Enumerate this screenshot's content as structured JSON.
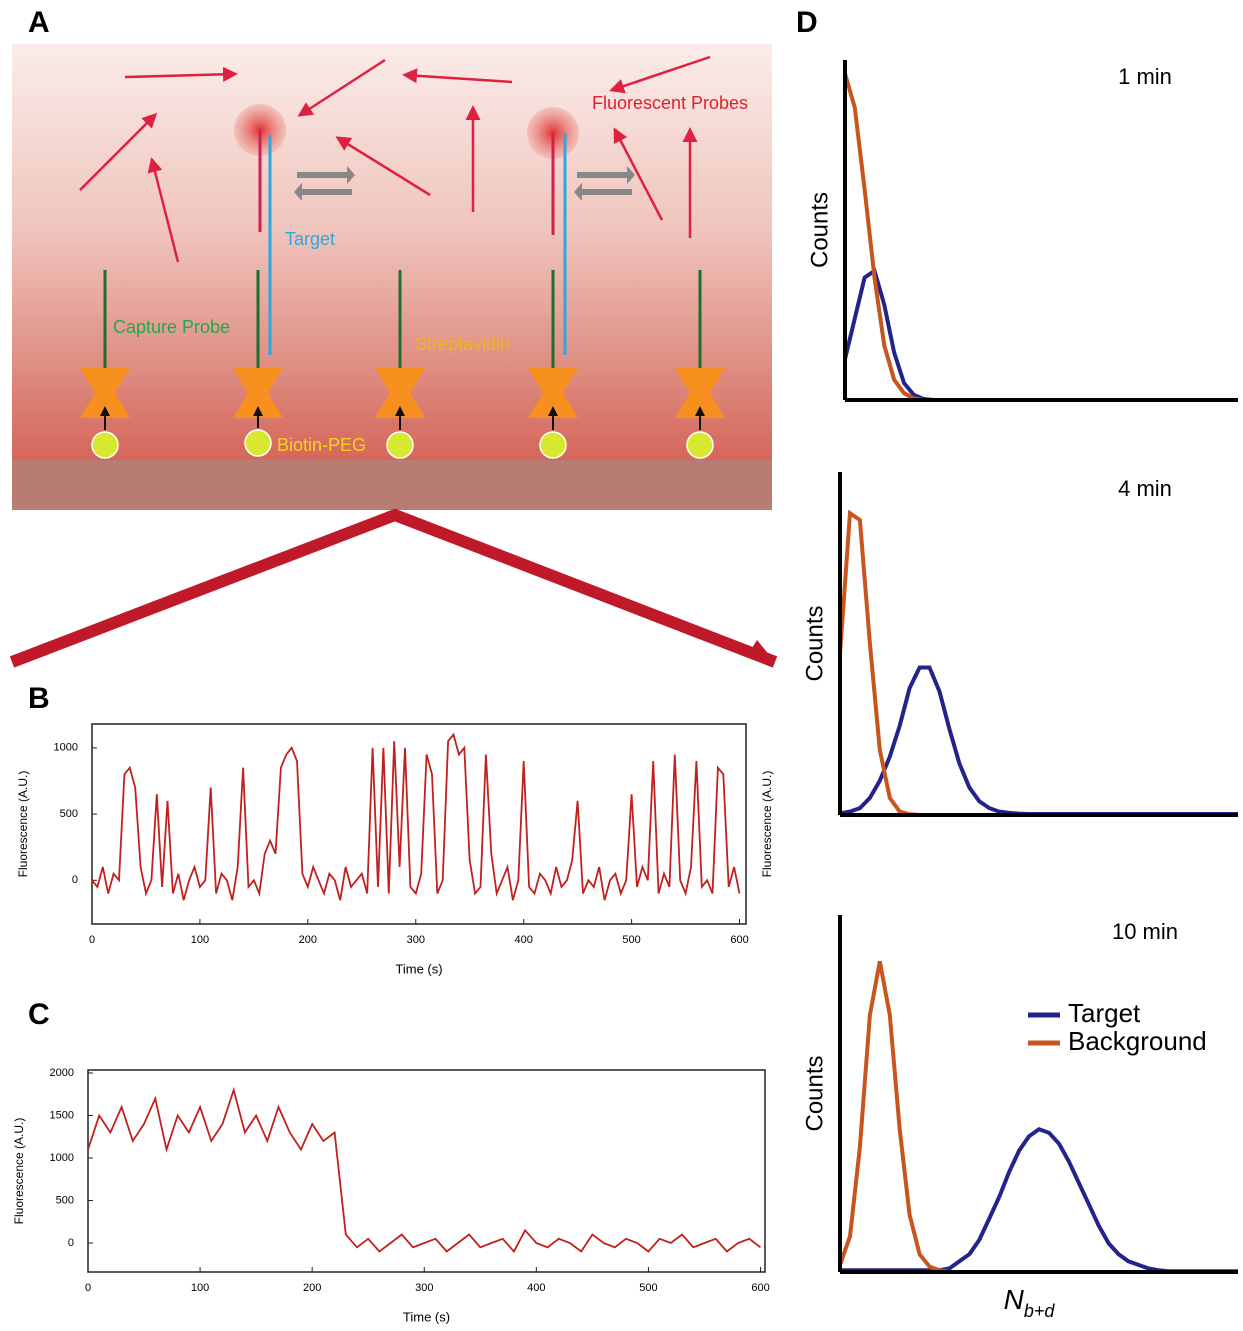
{
  "panel_labels": [
    "A",
    "B",
    "C",
    "D"
  ],
  "diagram": {
    "fluorescent_probes": "Fluorescent Probes",
    "target": "Target",
    "capture_probe": "Capture Probe",
    "streptavidin": "Streptavidin",
    "biotin_peg": "Biotin-PEG"
  },
  "chart_data": [
    {
      "type": "line",
      "ylabel": "Fluorescence (A.U.)",
      "xlabel": "Time (s)",
      "xlim": [
        0,
        606
      ],
      "ylim": [
        -330,
        1180
      ],
      "xticks": [
        0,
        100,
        200,
        300,
        400,
        500,
        600
      ],
      "yticks": [
        0,
        500,
        1000
      ],
      "x": [
        0,
        5,
        10,
        15,
        20,
        25,
        30,
        35,
        40,
        45,
        50,
        55,
        60,
        65,
        70,
        75,
        80,
        85,
        90,
        95,
        100,
        105,
        110,
        115,
        120,
        125,
        130,
        135,
        140,
        145,
        150,
        155,
        160,
        165,
        170,
        175,
        180,
        185,
        190,
        195,
        200,
        205,
        210,
        215,
        220,
        225,
        230,
        235,
        240,
        245,
        250,
        255,
        260,
        265,
        270,
        275,
        280,
        285,
        290,
        295,
        300,
        305,
        310,
        315,
        320,
        325,
        330,
        335,
        340,
        345,
        350,
        355,
        360,
        365,
        370,
        375,
        380,
        385,
        390,
        395,
        400,
        405,
        410,
        415,
        420,
        425,
        430,
        435,
        440,
        445,
        450,
        455,
        460,
        465,
        470,
        475,
        480,
        485,
        490,
        495,
        500,
        505,
        510,
        515,
        520,
        525,
        530,
        535,
        540,
        545,
        550,
        555,
        560,
        565,
        570,
        575,
        580,
        585,
        590,
        595,
        600
      ],
      "series": [
        {
          "color": "#c0201e",
          "values": [
            0,
            -50,
            100,
            -100,
            50,
            0,
            800,
            850,
            700,
            100,
            -100,
            0,
            650,
            -50,
            600,
            -100,
            50,
            -150,
            0,
            100,
            -50,
            0,
            700,
            -100,
            50,
            0,
            -150,
            100,
            850,
            -50,
            0,
            -100,
            200,
            300,
            200,
            850,
            950,
            1000,
            900,
            50,
            -50,
            100,
            0,
            -100,
            50,
            0,
            -150,
            100,
            -50,
            0,
            50,
            -100,
            1000,
            -50,
            1000,
            -100,
            1050,
            100,
            1000,
            -50,
            -100,
            50,
            950,
            800,
            -100,
            0,
            1050,
            1100,
            950,
            1000,
            150,
            -100,
            -50,
            950,
            200,
            -100,
            0,
            100,
            -150,
            0,
            900,
            -50,
            -100,
            50,
            0,
            -100,
            100,
            -50,
            0,
            150,
            600,
            -100,
            0,
            -50,
            100,
            -150,
            0,
            50,
            -100,
            0,
            650,
            -50,
            100,
            0,
            900,
            -100,
            50,
            -50,
            950,
            0,
            -100,
            100,
            900,
            -50,
            0,
            -100,
            850,
            800,
            -50,
            100,
            -100
          ]
        }
      ]
    },
    {
      "type": "line",
      "ylabel": "Fluorescence (A.U.)",
      "xlabel": "Time (s)",
      "xlim": [
        0,
        604
      ],
      "ylim": [
        -341,
        2035
      ],
      "xticks": [
        0,
        100,
        200,
        300,
        400,
        500,
        600
      ],
      "yticks": [
        0,
        500,
        1000,
        1500,
        2000
      ],
      "x": [
        0,
        10,
        20,
        30,
        40,
        50,
        60,
        70,
        80,
        90,
        100,
        110,
        120,
        130,
        140,
        150,
        160,
        170,
        180,
        190,
        200,
        210,
        220,
        230,
        240,
        250,
        260,
        270,
        280,
        290,
        300,
        310,
        320,
        330,
        340,
        350,
        360,
        370,
        380,
        390,
        400,
        410,
        420,
        430,
        440,
        450,
        460,
        470,
        480,
        490,
        500,
        510,
        520,
        530,
        540,
        550,
        560,
        570,
        580,
        590,
        600
      ],
      "series": [
        {
          "color": "#c0201e",
          "values": [
            1100,
            1500,
            1300,
            1600,
            1200,
            1400,
            1700,
            1100,
            1500,
            1300,
            1600,
            1200,
            1400,
            1800,
            1300,
            1500,
            1200,
            1600,
            1300,
            1100,
            1400,
            1200,
            1300,
            100,
            -50,
            50,
            -100,
            0,
            100,
            -50,
            0,
            50,
            -100,
            0,
            100,
            -50,
            0,
            50,
            -100,
            150,
            0,
            -50,
            50,
            0,
            -100,
            100,
            0,
            -50,
            50,
            0,
            -100,
            50,
            0,
            100,
            -50,
            0,
            50,
            -100,
            0,
            50,
            -50
          ]
        }
      ]
    },
    {
      "type": "line",
      "title": "1 min",
      "ylabel": "Counts",
      "xlim": [
        0,
        100
      ],
      "ylim": [
        0,
        100
      ],
      "x": [
        0,
        2.5,
        5,
        7.5,
        10,
        12.5,
        15,
        17.5,
        20,
        22.5,
        25,
        27.5,
        30,
        32.5,
        35,
        37.5,
        40,
        42.5,
        45,
        47.5,
        50,
        52.5,
        55,
        57.5,
        60,
        62.5,
        65,
        67.5,
        70,
        72.5,
        75,
        77.5,
        80,
        82.5,
        85,
        87.5,
        90,
        92.5,
        95,
        97.5,
        100
      ],
      "series": [
        {
          "color": "#23238a",
          "values": [
            12,
            24,
            36,
            38,
            28,
            14,
            5,
            1.5,
            0.3,
            0,
            0,
            0,
            0,
            0,
            0,
            0,
            0,
            0,
            0,
            0,
            0,
            0,
            0,
            0,
            0,
            0,
            0,
            0,
            0,
            0,
            0,
            0,
            0,
            0,
            0,
            0,
            0,
            0,
            0,
            0,
            0
          ]
        },
        {
          "color": "#c8541e",
          "values": [
            96,
            86,
            62,
            36,
            16,
            6,
            2,
            0.5,
            0,
            0,
            0,
            0,
            0,
            0,
            0,
            0,
            0,
            0,
            0,
            0,
            0,
            0,
            0,
            0,
            0,
            0,
            0,
            0,
            0,
            0,
            0,
            0,
            0,
            0,
            0,
            0,
            0,
            0,
            0,
            0,
            0
          ]
        }
      ]
    },
    {
      "type": "line",
      "title": "4 min",
      "ylabel": "Counts",
      "xlim": [
        0,
        100
      ],
      "ylim": [
        0,
        100
      ],
      "x": [
        0,
        2.5,
        5,
        7.5,
        10,
        12.5,
        15,
        17.5,
        20,
        22.5,
        25,
        27.5,
        30,
        32.5,
        35,
        37.5,
        40,
        42.5,
        45,
        47.5,
        50,
        52.5,
        55,
        57.5,
        60,
        62.5,
        65,
        67.5,
        70,
        72.5,
        75,
        77.5,
        80,
        82.5,
        85,
        87.5,
        90,
        92.5,
        95,
        97.5,
        100
      ],
      "series": [
        {
          "color": "#23238a",
          "values": [
            0.5,
            1,
            2,
            5,
            10,
            17,
            26,
            37,
            43,
            43,
            36,
            25,
            15,
            8,
            4,
            2,
            1,
            0.6,
            0.4,
            0.3,
            0.3,
            0.3,
            0.3,
            0.3,
            0.3,
            0.3,
            0.3,
            0.3,
            0.3,
            0.3,
            0.3,
            0.3,
            0.3,
            0.3,
            0.3,
            0.3,
            0.3,
            0.3,
            0.3,
            0.3,
            0.3
          ]
        },
        {
          "color": "#c8541e",
          "values": [
            47,
            88,
            86,
            50,
            19,
            5,
            1,
            0.2,
            0,
            0,
            0,
            0,
            0,
            0,
            0,
            0,
            0,
            0,
            0,
            0,
            0,
            0,
            0,
            0,
            0,
            0,
            0,
            0,
            0,
            0,
            0,
            0,
            0,
            0,
            0,
            0,
            0,
            0,
            0,
            0,
            0
          ]
        }
      ]
    },
    {
      "type": "line",
      "title": "10 min",
      "ylabel": "Counts",
      "xlabel": {
        "base": "N",
        "sub": "b+d"
      },
      "xlim": [
        0,
        100
      ],
      "ylim": [
        0,
        100
      ],
      "legend": "center-right",
      "x": [
        0,
        2.5,
        5,
        7.5,
        10,
        12.5,
        15,
        17.5,
        20,
        22.5,
        25,
        27.5,
        30,
        32.5,
        35,
        37.5,
        40,
        42.5,
        45,
        47.5,
        50,
        52.5,
        55,
        57.5,
        60,
        62.5,
        65,
        67.5,
        70,
        72.5,
        75,
        77.5,
        80,
        82.5,
        85,
        87.5,
        90,
        92.5,
        95,
        97.5,
        100
      ],
      "series": [
        {
          "name": "Target",
          "color": "#23238a",
          "values": [
            0.5,
            0.5,
            0.5,
            0.5,
            0.5,
            0.5,
            0.5,
            0.5,
            0.5,
            0.5,
            0.5,
            1,
            3,
            5,
            9,
            15,
            21,
            28,
            34,
            38,
            40,
            39,
            36,
            31,
            25,
            19,
            13,
            8,
            5,
            3,
            2,
            1,
            0.5,
            0.2,
            0.2,
            0.2,
            0.2,
            0.2,
            0.2,
            0.2,
            0.2
          ]
        },
        {
          "name": "Background",
          "color": "#c8541e",
          "values": [
            2,
            10,
            35,
            72,
            87,
            72,
            40,
            16,
            5,
            1.5,
            0.5,
            0,
            0,
            0,
            0,
            0,
            0,
            0,
            0,
            0,
            0,
            0,
            0,
            0,
            0,
            0,
            0,
            0,
            0,
            0,
            0,
            0,
            0,
            0,
            0,
            0,
            0,
            0,
            0,
            0,
            0
          ]
        }
      ]
    }
  ]
}
